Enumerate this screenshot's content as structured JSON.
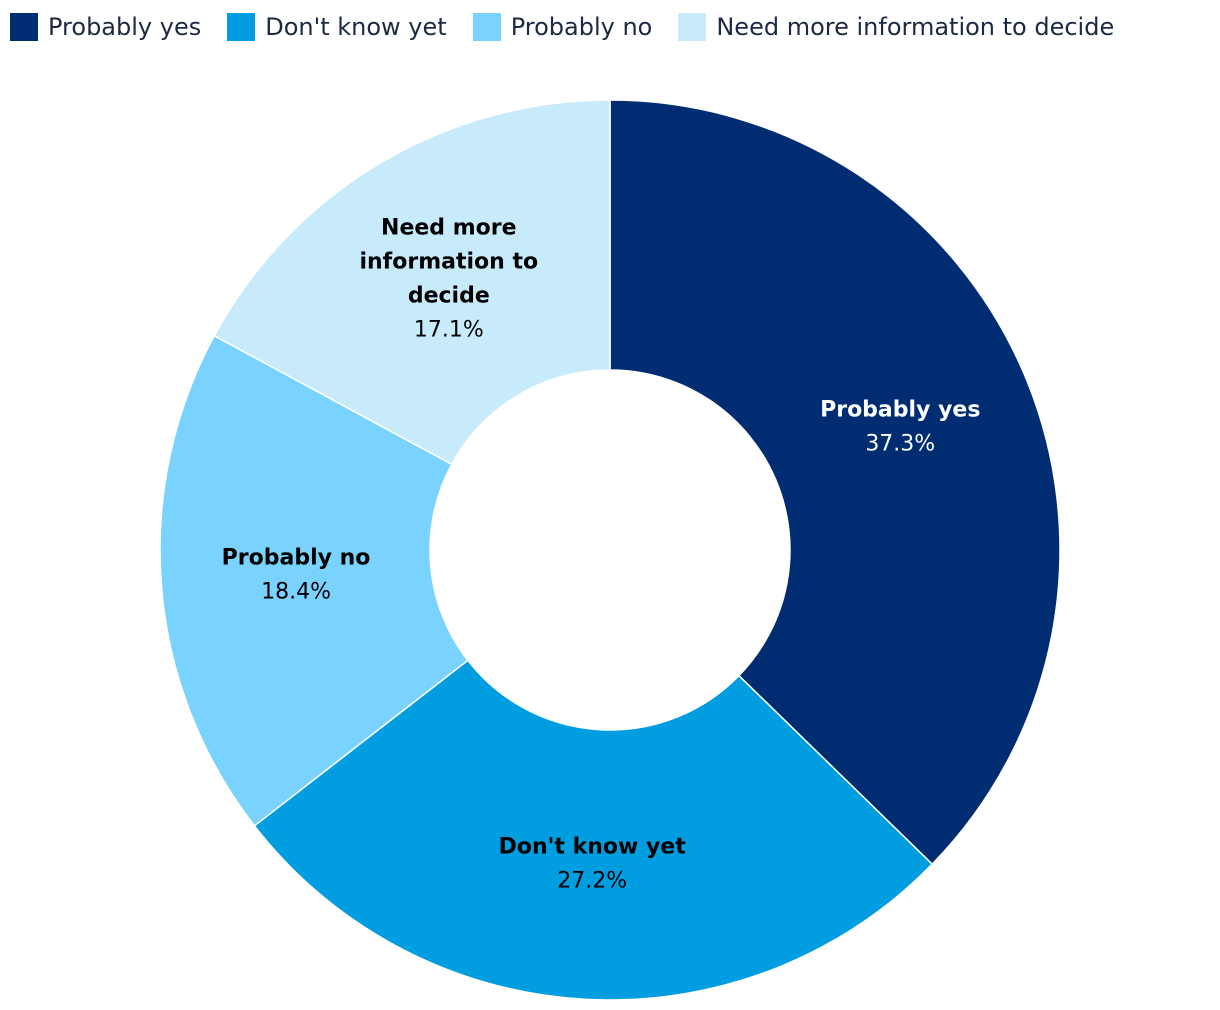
{
  "chart_data": {
    "type": "pie",
    "variant": "donut",
    "legend_position": "top-left",
    "series": [
      {
        "name": "Probably yes",
        "value": 37.3,
        "value_label": "37.3%",
        "color": "#002d72",
        "label_lines": [
          "Probably yes"
        ],
        "label_color": "#ffffff"
      },
      {
        "name": "Don't know yet",
        "value": 27.2,
        "value_label": "27.2%",
        "color": "#009de0",
        "label_lines": [
          "Don't know yet"
        ],
        "label_color": "#000000"
      },
      {
        "name": "Probably no",
        "value": 18.4,
        "value_label": "18.4%",
        "color": "#7ad2ff",
        "label_lines": [
          "Probably no"
        ],
        "label_color": "#000000"
      },
      {
        "name": "Need more information to decide",
        "value": 17.1,
        "value_label": "17.1%",
        "color": "#c8ebfc",
        "label_lines": [
          "Need more",
          "information to",
          "decide"
        ],
        "label_color": "#000000"
      }
    ]
  }
}
